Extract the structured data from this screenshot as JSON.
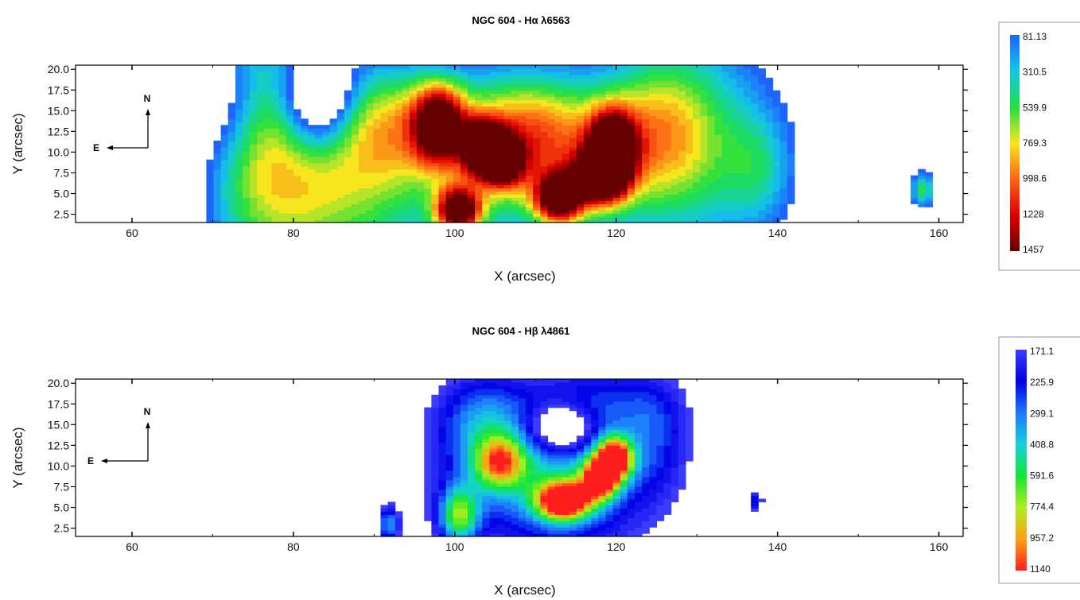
{
  "chart_data": [
    {
      "type": "heatmap",
      "title": "NGC 604 - Hα λ6563",
      "xlabel": "X (arcsec)",
      "ylabel": "Y (arcsec)",
      "xlim": [
        53,
        163
      ],
      "ylim": [
        1.5,
        20.5
      ],
      "xticks": [
        60,
        80,
        100,
        120,
        140,
        160
      ],
      "yticks": [
        20.0,
        17.5,
        15.0,
        12.5,
        10.0,
        7.5,
        5.0,
        2.5
      ],
      "compass": {
        "north": "N",
        "east": "E"
      },
      "colorbar": {
        "labels": [
          "81.13",
          "310.5",
          "539.9",
          "769.3",
          "998.6",
          "1228",
          "1457"
        ],
        "colors": [
          "#1e64ff",
          "#14c8e6",
          "#20e040",
          "#f5e61e",
          "#ff6414",
          "#dc0000",
          "#640000"
        ]
      },
      "blobs": [
        {
          "x": 70,
          "y": 12,
          "sx": 6,
          "sy": 14,
          "v": 0.3
        },
        {
          "x": 78,
          "y": 11,
          "sx": 6,
          "sy": 12,
          "v": 0.38
        },
        {
          "x": 88,
          "y": 6,
          "sx": 8,
          "sy": 8,
          "v": 0.42
        },
        {
          "x": 92,
          "y": 14,
          "sx": 5,
          "sy": 5,
          "v": 0.35
        },
        {
          "x": 98,
          "y": 13.5,
          "sx": 2.2,
          "sy": 3.2,
          "v": 0.85
        },
        {
          "x": 100.5,
          "y": 3,
          "sx": 2.0,
          "sy": 2.0,
          "v": 0.95
        },
        {
          "x": 103.5,
          "y": 10.5,
          "sx": 1.8,
          "sy": 2.2,
          "v": 0.95
        },
        {
          "x": 106,
          "y": 9,
          "sx": 1.7,
          "sy": 2.0,
          "v": 0.85
        },
        {
          "x": 113,
          "y": 4.5,
          "sx": 2.0,
          "sy": 2.0,
          "v": 0.95
        },
        {
          "x": 119.5,
          "y": 10.5,
          "sx": 2.0,
          "sy": 3.0,
          "v": 1.0
        },
        {
          "x": 118,
          "y": 7,
          "sx": 2.2,
          "sy": 2.2,
          "v": 0.85
        },
        {
          "x": 108,
          "y": 13,
          "sx": 7,
          "sy": 5,
          "v": 0.45
        },
        {
          "x": 112,
          "y": 8,
          "sx": 9,
          "sy": 7,
          "v": 0.45
        },
        {
          "x": 125,
          "y": 13,
          "sx": 5,
          "sy": 7,
          "v": 0.42
        },
        {
          "x": 132,
          "y": 11,
          "sx": 6,
          "sy": 10,
          "v": 0.3
        },
        {
          "x": 138,
          "y": 8,
          "sx": 3,
          "sy": 5,
          "v": 0.22
        },
        {
          "x": 158,
          "y": 5.5,
          "sx": 1.0,
          "sy": 1.5,
          "v": 0.45
        }
      ],
      "holes": [
        {
          "x": 83,
          "y": 16.5,
          "sx": 3.2,
          "sy": 4.5,
          "v": 0.6
        },
        {
          "x": 65,
          "y": 12,
          "sx": 5,
          "sy": 14,
          "v": 0.4
        },
        {
          "x": 72,
          "y": 16,
          "sx": 3,
          "sy": 5,
          "v": 0.25
        }
      ]
    },
    {
      "type": "heatmap",
      "title": "NGC 604 - Hβ λ4861",
      "xlabel": "X (arcsec)",
      "ylabel": "Y (arcsec)",
      "xlim": [
        53,
        163
      ],
      "ylim": [
        1.5,
        20.5
      ],
      "xticks": [
        60,
        80,
        100,
        120,
        140,
        160
      ],
      "yticks": [
        20.0,
        17.5,
        15.0,
        12.5,
        10.0,
        7.5,
        5.0,
        2.5
      ],
      "compass": {
        "north": "N",
        "east": "E"
      },
      "colorbar": {
        "labels": [
          "171.1",
          "225.9",
          "299.1",
          "408.8",
          "591.6",
          "774.4",
          "957.2",
          "1140"
        ],
        "colors": [
          "#3c3cff",
          "#0000e6",
          "#1e78ff",
          "#14d2dc",
          "#14e632",
          "#aaf01e",
          "#ffa014",
          "#ff1e1e"
        ]
      },
      "blobs": [
        {
          "x": 100.5,
          "y": 4,
          "sx": 1.8,
          "sy": 2.5,
          "v": 0.6
        },
        {
          "x": 105.5,
          "y": 10.5,
          "sx": 2.2,
          "sy": 2.2,
          "v": 0.55
        },
        {
          "x": 113.5,
          "y": 5.8,
          "sx": 2.3,
          "sy": 1.6,
          "v": 0.95
        },
        {
          "x": 118,
          "y": 8.5,
          "sx": 1.6,
          "sy": 1.8,
          "v": 0.8
        },
        {
          "x": 119.8,
          "y": 11,
          "sx": 1.6,
          "sy": 1.8,
          "v": 0.92
        },
        {
          "x": 108,
          "y": 10,
          "sx": 8,
          "sy": 6,
          "v": 0.3
        },
        {
          "x": 115,
          "y": 8,
          "sx": 8,
          "sy": 7,
          "v": 0.3
        },
        {
          "x": 103,
          "y": 16,
          "sx": 4,
          "sy": 4,
          "v": 0.28
        },
        {
          "x": 118,
          "y": 18,
          "sx": 6,
          "sy": 3,
          "v": 0.2
        },
        {
          "x": 125,
          "y": 14,
          "sx": 3,
          "sy": 5,
          "v": 0.22
        },
        {
          "x": 91.8,
          "y": 3,
          "sx": 0.9,
          "sy": 1.5,
          "v": 0.45
        },
        {
          "x": 137.2,
          "y": 5.8,
          "sx": 0.7,
          "sy": 0.9,
          "v": 0.3
        }
      ],
      "holes": [
        {
          "x": 113,
          "y": 14.5,
          "sx": 3.0,
          "sy": 2.2,
          "v": 0.5
        }
      ]
    }
  ]
}
